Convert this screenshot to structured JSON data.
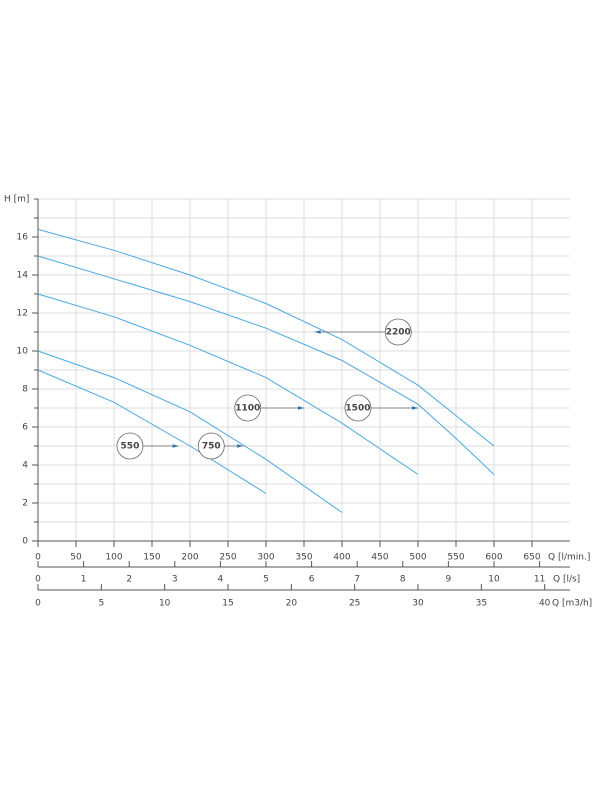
{
  "chart_data": {
    "type": "line",
    "ylabel": "H [m]",
    "ylim": [
      0,
      18
    ],
    "yticks": [
      0,
      2,
      4,
      6,
      8,
      10,
      12,
      14,
      16
    ],
    "xlabel": "Q  [l/min.]",
    "xlim": [
      0,
      700
    ],
    "xticks": [
      0,
      50,
      100,
      150,
      200,
      250,
      300,
      350,
      400,
      450,
      500,
      550,
      600,
      650
    ],
    "x2label": "Q  [l/s]",
    "x2lim": [
      0,
      11.667
    ],
    "x2ticks": [
      0,
      1,
      2,
      3,
      4,
      5,
      6,
      7,
      8,
      9,
      10,
      11
    ],
    "x3label": "Q  [m3/h]",
    "x3lim": [
      0,
      42
    ],
    "x3ticks": [
      0,
      5,
      10,
      15,
      20,
      25,
      30,
      35,
      40
    ],
    "grid": true,
    "series": [
      {
        "name": "550",
        "color": "#4aa8e0",
        "x": [
          0,
          100,
          200,
          300
        ],
        "values": [
          9.0,
          7.3,
          5.0,
          2.5
        ]
      },
      {
        "name": "750",
        "color": "#4aa8e0",
        "x": [
          0,
          100,
          200,
          300,
          400
        ],
        "values": [
          10.0,
          8.6,
          6.8,
          4.3,
          1.5
        ]
      },
      {
        "name": "1100",
        "color": "#4aa8e0",
        "x": [
          0,
          100,
          200,
          300,
          400,
          500
        ],
        "values": [
          13.0,
          11.8,
          10.3,
          8.6,
          6.2,
          3.5
        ]
      },
      {
        "name": "1500",
        "color": "#4aa8e0",
        "x": [
          0,
          100,
          200,
          300,
          400,
          500,
          550,
          600
        ],
        "values": [
          15.0,
          13.8,
          12.6,
          11.2,
          9.5,
          7.2,
          5.4,
          3.5
        ]
      },
      {
        "name": "2200",
        "color": "#4aa8e0",
        "x": [
          0,
          100,
          200,
          300,
          400,
          500,
          550,
          600
        ],
        "values": [
          16.4,
          15.3,
          14.0,
          12.5,
          10.6,
          8.2,
          6.6,
          5.0
        ]
      }
    ]
  }
}
